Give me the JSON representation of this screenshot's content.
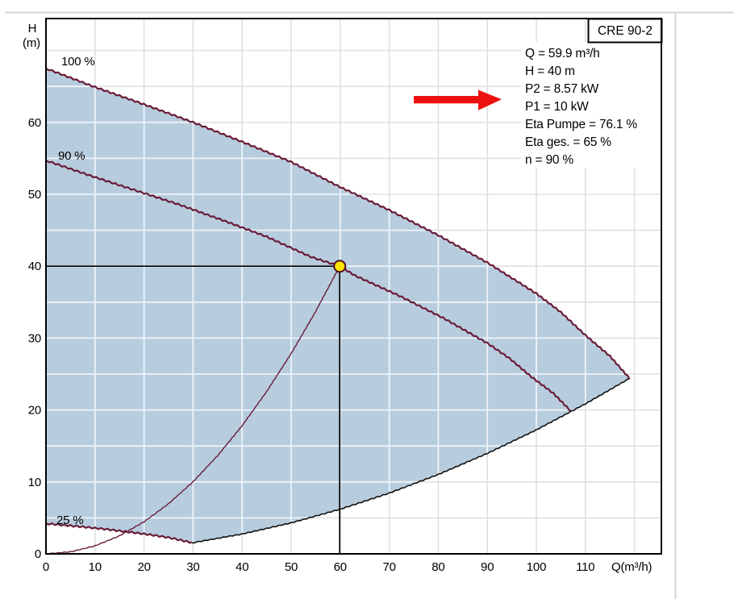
{
  "pump": {
    "model": "CRE 90-2"
  },
  "info_panel": {
    "lines": [
      "Q = 59.9 m³/h",
      "H = 40 m",
      "P2 = 8.57 kW",
      "P1 = 10 kW",
      "Eta Pumpe = 76.1 %",
      "Eta ges. = 65 %",
      "n = 90 %"
    ]
  },
  "colors": {
    "envelope_fill": "#b7cdde",
    "grid": "#e0e0e0",
    "grid_on_fill": "#eef3f8",
    "curve_maroon": "#6a1b37",
    "envelope_min_line": "#111111",
    "crosshair": "#000000",
    "duty_fill": "#ffe400",
    "duty_stroke": "#4d1124",
    "arrow_red": "#ee1111",
    "axis": "#000000",
    "background": "#ffffff",
    "divider": "#d4d4d4"
  },
  "chart_data": {
    "type": "line",
    "title": "CRE 90-2 pump performance envelope, H vs Q",
    "x_axis": {
      "unit_label": "Q(m³/h)",
      "ticks": [
        0,
        10,
        20,
        30,
        40,
        50,
        60,
        70,
        80,
        90,
        100,
        110
      ],
      "range": [
        0,
        125.5
      ],
      "grid_step": 10,
      "grid_max": 120,
      "grid": true
    },
    "y_axis": {
      "title": "H",
      "unit": "(m)",
      "ticks": [
        0,
        10,
        20,
        30,
        40,
        50,
        60
      ],
      "range": [
        0,
        74.4
      ],
      "grid_step": 5,
      "grid_max": 70,
      "grid": true
    },
    "duty_point": {
      "q": 59.9,
      "h": 40
    },
    "series": [
      {
        "name": "speed-100",
        "label": "100 %",
        "style": "pump-curve",
        "points": [
          [
            0,
            67.5
          ],
          [
            10,
            64.9
          ],
          [
            20,
            62.5
          ],
          [
            30,
            60.0
          ],
          [
            40,
            57.3
          ],
          [
            50,
            54.5
          ],
          [
            60,
            51.0
          ],
          [
            70,
            47.8
          ],
          [
            80,
            44.3
          ],
          [
            90,
            40.5
          ],
          [
            100,
            36.2
          ],
          [
            105,
            33.6
          ],
          [
            110,
            30.4
          ],
          [
            115,
            27.5
          ],
          [
            119,
            24.4
          ]
        ]
      },
      {
        "name": "speed-90",
        "label": "90 %",
        "style": "pump-curve",
        "points": [
          [
            0,
            54.7
          ],
          [
            9,
            52.6
          ],
          [
            18,
            50.6
          ],
          [
            27,
            48.6
          ],
          [
            36,
            46.4
          ],
          [
            45,
            44.1
          ],
          [
            54,
            41.3
          ],
          [
            59.9,
            40.0
          ],
          [
            63,
            38.7
          ],
          [
            72,
            35.9
          ],
          [
            81,
            32.8
          ],
          [
            90,
            29.3
          ],
          [
            94.5,
            27.2
          ],
          [
            99,
            24.6
          ],
          [
            103.5,
            22.3
          ],
          [
            107.1,
            19.8
          ]
        ]
      },
      {
        "name": "speed-25",
        "label": "25 %",
        "style": "pump-curve",
        "points": [
          [
            0,
            4.22
          ],
          [
            2.5,
            4.06
          ],
          [
            5,
            3.91
          ],
          [
            7.5,
            3.75
          ],
          [
            10,
            3.58
          ],
          [
            12.5,
            3.41
          ],
          [
            15,
            3.19
          ],
          [
            17.5,
            2.99
          ],
          [
            20,
            2.77
          ],
          [
            22.5,
            2.53
          ],
          [
            25,
            2.26
          ],
          [
            26.25,
            2.1
          ],
          [
            27.5,
            1.9
          ],
          [
            28.75,
            1.72
          ],
          [
            29.75,
            1.53
          ]
        ]
      },
      {
        "name": "envelope-min-boundary",
        "label": "",
        "style": "min-boundary",
        "points": [
          [
            29.75,
            1.53
          ],
          [
            40,
            2.76
          ],
          [
            50,
            4.31
          ],
          [
            60,
            6.21
          ],
          [
            70,
            8.45
          ],
          [
            80,
            11.04
          ],
          [
            90,
            13.97
          ],
          [
            100,
            17.24
          ],
          [
            110,
            20.86
          ],
          [
            119,
            24.4
          ]
        ]
      },
      {
        "name": "system-curve",
        "label": "",
        "style": "system-curve",
        "points": [
          [
            0,
            0
          ],
          [
            5,
            0.28
          ],
          [
            10,
            1.11
          ],
          [
            15,
            2.51
          ],
          [
            20,
            4.46
          ],
          [
            25,
            6.97
          ],
          [
            30,
            10.03
          ],
          [
            35,
            13.66
          ],
          [
            40,
            17.83
          ],
          [
            45,
            22.57
          ],
          [
            50,
            27.86
          ],
          [
            55,
            33.71
          ],
          [
            59.9,
            40
          ]
        ]
      }
    ],
    "legend_position": "none",
    "annotations": {
      "red_arrow_points_at": "P2 = 8.57 kW / P1 = 10 kW"
    }
  }
}
